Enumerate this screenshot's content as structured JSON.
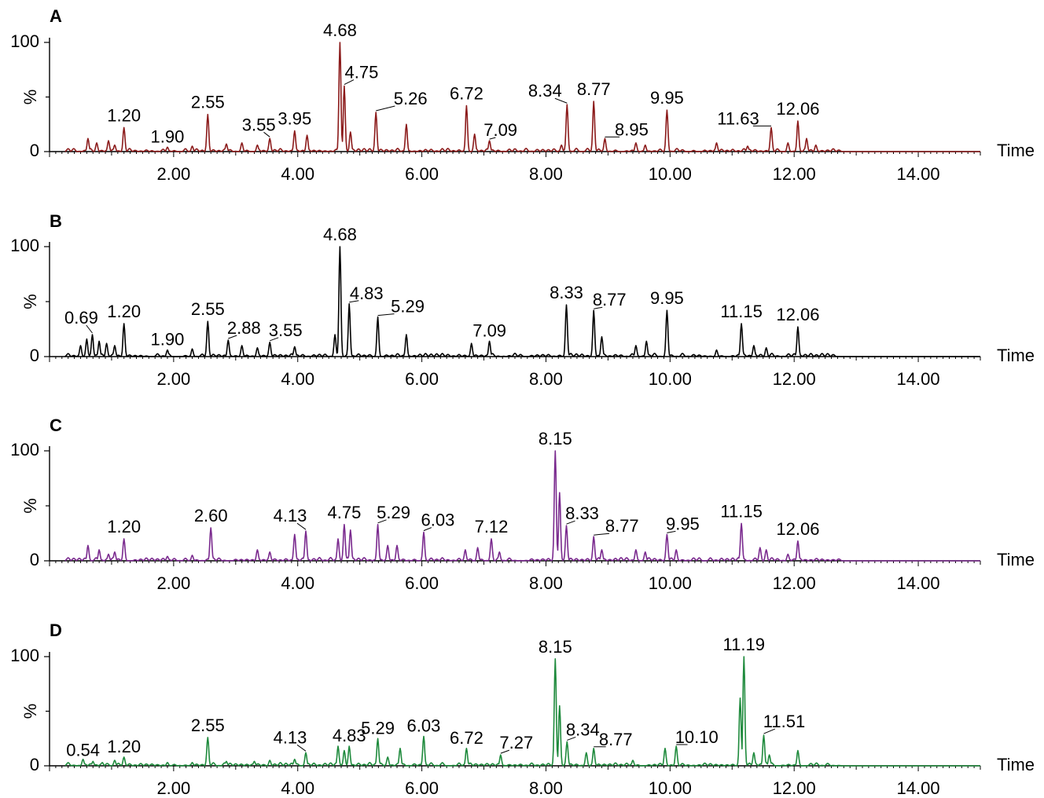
{
  "figure": {
    "background": "#ffffff"
  },
  "chart_data": [
    {
      "type": "line",
      "panel": "A",
      "color": "#8b1a1a",
      "xlabel": "Time",
      "ylabel": "%",
      "xlim": [
        0,
        15
      ],
      "ylim": [
        0,
        100
      ],
      "xticks": [
        "2.00",
        "4.00",
        "6.00",
        "8.00",
        "10.00",
        "12.00",
        "14.00"
      ],
      "yticks": [
        "0",
        "100"
      ],
      "peaks": [
        {
          "label": "1.20",
          "x": 1.2,
          "y": 22
        },
        {
          "label": "1.90",
          "x": 1.9,
          "y": 4
        },
        {
          "label": "2.55",
          "x": 2.55,
          "y": 34
        },
        {
          "label": "3.55",
          "x": 3.55,
          "y": 12
        },
        {
          "label": "3.95",
          "x": 3.95,
          "y": 19
        },
        {
          "label": "4.68",
          "x": 4.68,
          "y": 100
        },
        {
          "label": "4.75",
          "x": 4.75,
          "y": 60
        },
        {
          "label": "5.26",
          "x": 5.26,
          "y": 36
        },
        {
          "label": "6.72",
          "x": 6.72,
          "y": 42
        },
        {
          "label": "7.09",
          "x": 7.09,
          "y": 10
        },
        {
          "label": "8.34",
          "x": 8.34,
          "y": 43
        },
        {
          "label": "8.77",
          "x": 8.77,
          "y": 46
        },
        {
          "label": "8.95",
          "x": 8.95,
          "y": 12
        },
        {
          "label": "9.95",
          "x": 9.95,
          "y": 38
        },
        {
          "label": "11.63",
          "x": 11.63,
          "y": 22
        },
        {
          "label": "12.06",
          "x": 12.06,
          "y": 28
        }
      ],
      "minor_peaks": [
        {
          "x": 0.62,
          "y": 12
        },
        {
          "x": 0.76,
          "y": 8
        },
        {
          "x": 0.95,
          "y": 10
        },
        {
          "x": 1.05,
          "y": 6
        },
        {
          "x": 2.3,
          "y": 5
        },
        {
          "x": 2.85,
          "y": 7
        },
        {
          "x": 3.1,
          "y": 8
        },
        {
          "x": 3.35,
          "y": 6
        },
        {
          "x": 4.15,
          "y": 15
        },
        {
          "x": 4.85,
          "y": 18
        },
        {
          "x": 5.75,
          "y": 25
        },
        {
          "x": 6.85,
          "y": 16
        },
        {
          "x": 8.25,
          "y": 6
        },
        {
          "x": 9.45,
          "y": 8
        },
        {
          "x": 9.6,
          "y": 6
        },
        {
          "x": 10.75,
          "y": 8
        },
        {
          "x": 11.25,
          "y": 5
        },
        {
          "x": 11.9,
          "y": 8
        },
        {
          "x": 12.2,
          "y": 12
        },
        {
          "x": 12.35,
          "y": 6
        }
      ],
      "annotations": [
        {
          "text": "A",
          "position": "top-left"
        }
      ]
    },
    {
      "type": "line",
      "panel": "B",
      "color": "#000000",
      "xlabel": "Time",
      "ylabel": "%",
      "xlim": [
        0,
        15
      ],
      "ylim": [
        0,
        100
      ],
      "xticks": [
        "2.00",
        "4.00",
        "6.00",
        "8.00",
        "10.00",
        "12.00",
        "14.00"
      ],
      "yticks": [
        "0",
        "100"
      ],
      "peaks": [
        {
          "label": "0.69",
          "x": 0.69,
          "y": 20
        },
        {
          "label": "1.20",
          "x": 1.2,
          "y": 30
        },
        {
          "label": "1.90",
          "x": 1.9,
          "y": 6
        },
        {
          "label": "2.55",
          "x": 2.55,
          "y": 32
        },
        {
          "label": "2.88",
          "x": 2.88,
          "y": 15
        },
        {
          "label": "3.55",
          "x": 3.55,
          "y": 13
        },
        {
          "label": "4.68",
          "x": 4.68,
          "y": 100
        },
        {
          "label": "4.83",
          "x": 4.83,
          "y": 48
        },
        {
          "label": "5.29",
          "x": 5.29,
          "y": 36
        },
        {
          "label": "7.09",
          "x": 7.09,
          "y": 14
        },
        {
          "label": "8.33",
          "x": 8.33,
          "y": 47
        },
        {
          "label": "8.77",
          "x": 8.77,
          "y": 42
        },
        {
          "label": "9.95",
          "x": 9.95,
          "y": 42
        },
        {
          "label": "11.15",
          "x": 11.15,
          "y": 30
        },
        {
          "label": "12.06",
          "x": 12.06,
          "y": 27
        }
      ],
      "minor_peaks": [
        {
          "x": 0.5,
          "y": 10
        },
        {
          "x": 0.6,
          "y": 16
        },
        {
          "x": 0.8,
          "y": 14
        },
        {
          "x": 0.92,
          "y": 12
        },
        {
          "x": 1.05,
          "y": 10
        },
        {
          "x": 2.3,
          "y": 7
        },
        {
          "x": 3.1,
          "y": 10
        },
        {
          "x": 3.35,
          "y": 8
        },
        {
          "x": 3.95,
          "y": 9
        },
        {
          "x": 4.6,
          "y": 20
        },
        {
          "x": 5.75,
          "y": 20
        },
        {
          "x": 6.8,
          "y": 12
        },
        {
          "x": 8.9,
          "y": 18
        },
        {
          "x": 9.45,
          "y": 10
        },
        {
          "x": 9.62,
          "y": 14
        },
        {
          "x": 10.75,
          "y": 6
        },
        {
          "x": 11.35,
          "y": 10
        },
        {
          "x": 11.55,
          "y": 8
        }
      ],
      "annotations": [
        {
          "text": "B",
          "position": "top-left"
        }
      ]
    },
    {
      "type": "line",
      "panel": "C",
      "color": "#7a2a8e",
      "xlabel": "Time",
      "ylabel": "%",
      "xlim": [
        0,
        15
      ],
      "ylim": [
        0,
        100
      ],
      "xticks": [
        "2.00",
        "4.00",
        "6.00",
        "8.00",
        "10.00",
        "12.00",
        "14.00"
      ],
      "yticks": [
        "0",
        "100"
      ],
      "peaks": [
        {
          "label": "1.20",
          "x": 1.2,
          "y": 20
        },
        {
          "label": "2.60",
          "x": 2.6,
          "y": 30
        },
        {
          "label": "4.13",
          "x": 4.13,
          "y": 27
        },
        {
          "label": "4.75",
          "x": 4.75,
          "y": 33
        },
        {
          "label": "5.29",
          "x": 5.29,
          "y": 33
        },
        {
          "label": "6.03",
          "x": 6.03,
          "y": 26
        },
        {
          "label": "7.12",
          "x": 7.12,
          "y": 20
        },
        {
          "label": "8.15",
          "x": 8.15,
          "y": 100
        },
        {
          "label": "8.33",
          "x": 8.33,
          "y": 32
        },
        {
          "label": "8.77",
          "x": 8.77,
          "y": 22
        },
        {
          "label": "9.95",
          "x": 9.95,
          "y": 24
        },
        {
          "label": "11.15",
          "x": 11.15,
          "y": 34
        },
        {
          "label": "12.06",
          "x": 12.06,
          "y": 18
        }
      ],
      "minor_peaks": [
        {
          "x": 0.62,
          "y": 14
        },
        {
          "x": 0.8,
          "y": 10
        },
        {
          "x": 0.95,
          "y": 6
        },
        {
          "x": 1.05,
          "y": 8
        },
        {
          "x": 1.9,
          "y": 4
        },
        {
          "x": 2.3,
          "y": 5
        },
        {
          "x": 3.35,
          "y": 10
        },
        {
          "x": 3.55,
          "y": 8
        },
        {
          "x": 3.95,
          "y": 24
        },
        {
          "x": 4.65,
          "y": 20
        },
        {
          "x": 4.85,
          "y": 28
        },
        {
          "x": 5.45,
          "y": 14
        },
        {
          "x": 5.6,
          "y": 14
        },
        {
          "x": 6.7,
          "y": 10
        },
        {
          "x": 6.9,
          "y": 12
        },
        {
          "x": 7.25,
          "y": 8
        },
        {
          "x": 8.22,
          "y": 62
        },
        {
          "x": 8.9,
          "y": 10
        },
        {
          "x": 9.45,
          "y": 10
        },
        {
          "x": 9.6,
          "y": 8
        },
        {
          "x": 10.1,
          "y": 10
        },
        {
          "x": 11.45,
          "y": 12
        },
        {
          "x": 11.55,
          "y": 10
        },
        {
          "x": 11.9,
          "y": 6
        }
      ],
      "annotations": [
        {
          "text": "C",
          "position": "top-left"
        }
      ]
    },
    {
      "type": "line",
      "panel": "D",
      "color": "#1e8a3c",
      "xlabel": "Time",
      "ylabel": "%",
      "xlim": [
        0,
        15
      ],
      "ylim": [
        0,
        100
      ],
      "xticks": [
        "2.00",
        "4.00",
        "6.00",
        "8.00",
        "10.00",
        "12.00",
        "14.00"
      ],
      "yticks": [
        "0",
        "100"
      ],
      "peaks": [
        {
          "label": "0.54",
          "x": 0.54,
          "y": 6
        },
        {
          "label": "1.20",
          "x": 1.2,
          "y": 8
        },
        {
          "label": "2.55",
          "x": 2.55,
          "y": 26
        },
        {
          "label": "4.13",
          "x": 4.13,
          "y": 12
        },
        {
          "label": "4.83",
          "x": 4.83,
          "y": 18
        },
        {
          "label": "5.29",
          "x": 5.29,
          "y": 25
        },
        {
          "label": "6.03",
          "x": 6.03,
          "y": 27
        },
        {
          "label": "6.72",
          "x": 6.72,
          "y": 16
        },
        {
          "label": "7.27",
          "x": 7.27,
          "y": 10
        },
        {
          "label": "8.15",
          "x": 8.15,
          "y": 98
        },
        {
          "label": "8.34",
          "x": 8.34,
          "y": 22
        },
        {
          "label": "8.77",
          "x": 8.77,
          "y": 16
        },
        {
          "label": "10.10",
          "x": 10.1,
          "y": 18
        },
        {
          "label": "11.19",
          "x": 11.19,
          "y": 100
        },
        {
          "label": "11.51",
          "x": 11.51,
          "y": 28
        }
      ],
      "minor_peaks": [
        {
          "x": 0.7,
          "y": 4
        },
        {
          "x": 0.85,
          "y": 3
        },
        {
          "x": 1.05,
          "y": 5
        },
        {
          "x": 1.9,
          "y": 3
        },
        {
          "x": 2.3,
          "y": 3
        },
        {
          "x": 2.85,
          "y": 4
        },
        {
          "x": 3.3,
          "y": 4
        },
        {
          "x": 3.55,
          "y": 5
        },
        {
          "x": 3.95,
          "y": 6
        },
        {
          "x": 4.65,
          "y": 18
        },
        {
          "x": 4.75,
          "y": 14
        },
        {
          "x": 5.45,
          "y": 8
        },
        {
          "x": 5.65,
          "y": 16
        },
        {
          "x": 8.22,
          "y": 55
        },
        {
          "x": 8.65,
          "y": 12
        },
        {
          "x": 9.4,
          "y": 5
        },
        {
          "x": 9.92,
          "y": 16
        },
        {
          "x": 11.13,
          "y": 62
        },
        {
          "x": 11.35,
          "y": 12
        },
        {
          "x": 11.6,
          "y": 10
        },
        {
          "x": 12.06,
          "y": 14
        }
      ],
      "annotations": [
        {
          "text": "D",
          "position": "top-left"
        }
      ]
    }
  ]
}
